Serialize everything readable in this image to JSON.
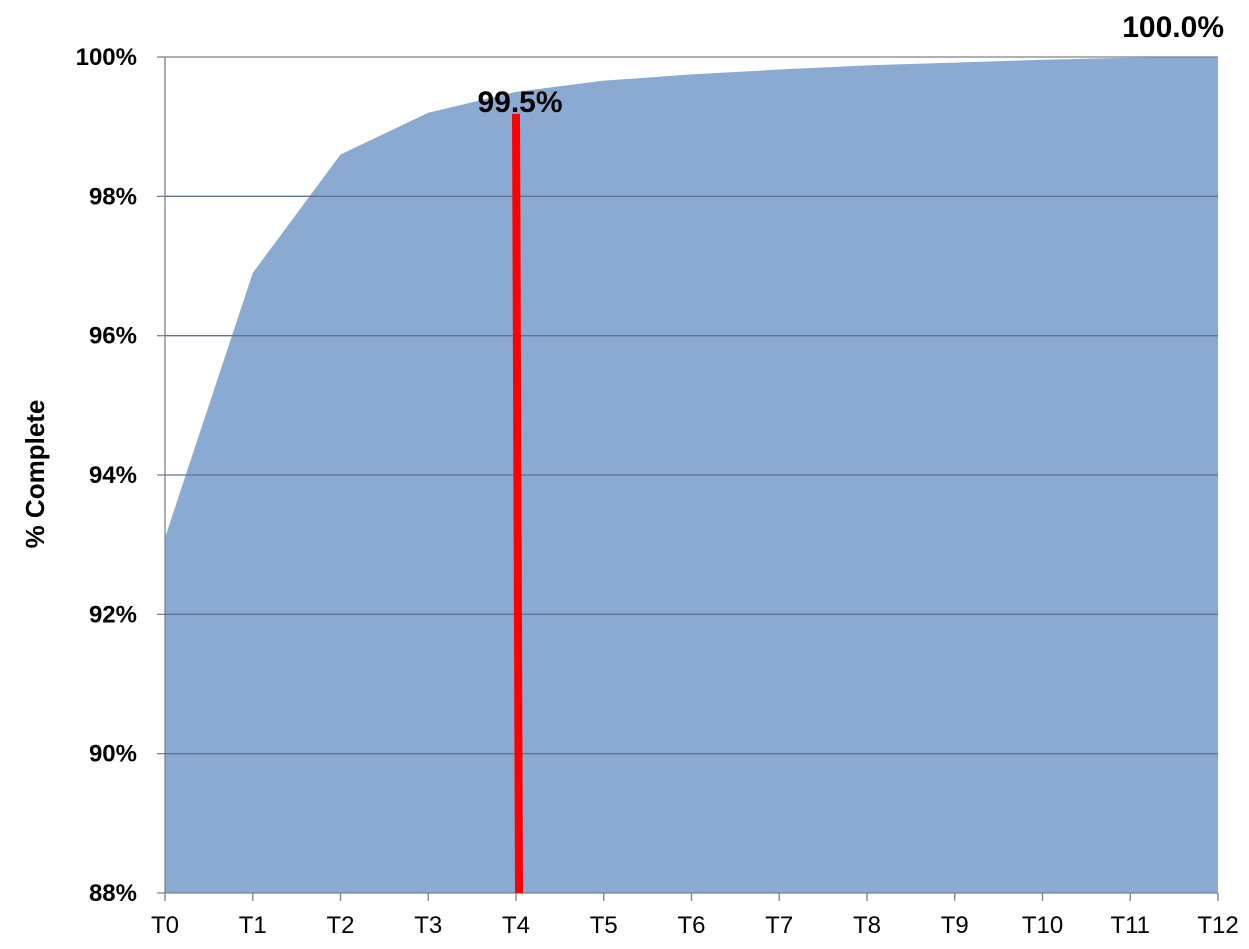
{
  "chart_data": {
    "type": "area",
    "ylabel": "% Complete",
    "xlabel": "",
    "title": "",
    "categories": [
      "T0",
      "T1",
      "T2",
      "T3",
      "T4",
      "T5",
      "T6",
      "T7",
      "T8",
      "T9",
      "T10",
      "T11",
      "T12"
    ],
    "values": [
      93.1,
      96.9,
      98.6,
      99.2,
      99.5,
      99.66,
      99.75,
      99.82,
      99.88,
      99.92,
      99.96,
      99.99,
      100.0
    ],
    "ylim": [
      88,
      100
    ],
    "yticks": [
      "88%",
      "90%",
      "92%",
      "94%",
      "96%",
      "98%",
      "100%"
    ],
    "grid": true,
    "colors": {
      "area": "#8aaad2",
      "grid": "#5a7394",
      "axis": "#808080",
      "marker": "#ff0000"
    },
    "marker": {
      "category": "T4",
      "label": "99.5%"
    },
    "end_label": {
      "category": "T12",
      "label": "100.0%"
    }
  }
}
